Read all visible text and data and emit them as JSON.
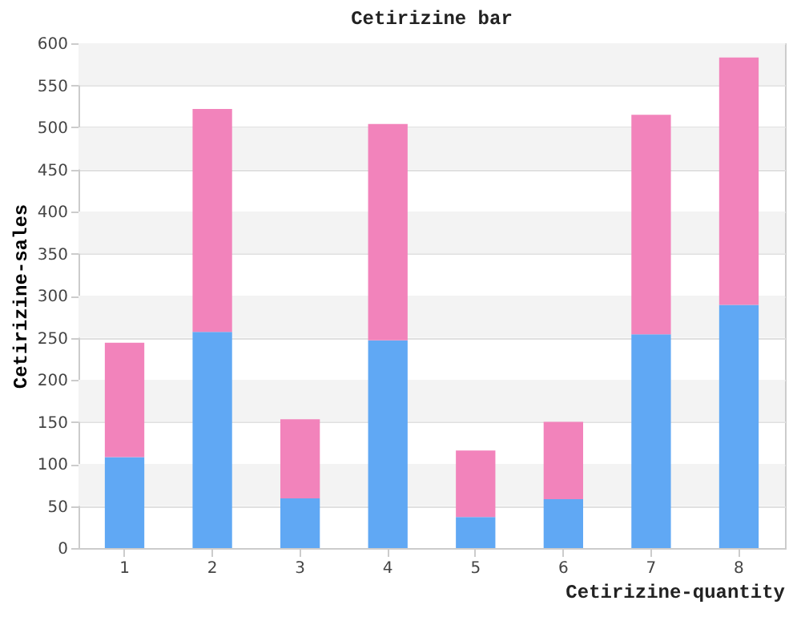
{
  "chart_data": {
    "type": "bar",
    "title": "Cetirizine bar",
    "xlabel": "Cetirizine-quantity",
    "ylabel": "Cetirizine-sales",
    "categories": [
      "1",
      "2",
      "3",
      "4",
      "5",
      "6",
      "7",
      "8"
    ],
    "stacked": true,
    "series": [
      {
        "color": "#60a8f4",
        "values": [
          108,
          257,
          59,
          247,
          37,
          58,
          254,
          289
        ]
      },
      {
        "color": "#f283bb",
        "values": [
          136,
          265,
          94,
          257,
          79,
          92,
          261,
          294
        ]
      }
    ],
    "ylim": [
      0,
      600
    ],
    "yticks": [
      0,
      50,
      100,
      150,
      200,
      250,
      300,
      350,
      400,
      450,
      500,
      550,
      600
    ],
    "grid": "y"
  }
}
